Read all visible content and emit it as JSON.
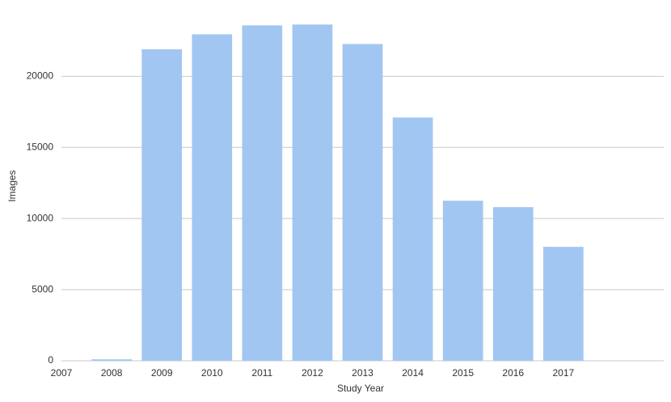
{
  "chart_data": {
    "type": "bar",
    "x_label": "Study Year",
    "y_label": "Images",
    "x": [
      2008,
      2009,
      2010,
      2011,
      2012,
      2013,
      2014,
      2015,
      2016,
      2017
    ],
    "values": [
      100,
      21900,
      22950,
      23580,
      23640,
      22270,
      17100,
      11250,
      10800,
      8010
    ],
    "color": "#a1c6f1",
    "xlim": [
      2007,
      2019
    ],
    "xticks": [
      2007,
      2008,
      2009,
      2010,
      2011,
      2012,
      2013,
      2014,
      2015,
      2016,
      2017
    ],
    "ylim": [
      0,
      24000
    ],
    "yticks": [
      0,
      5000,
      10000,
      15000,
      20000
    ],
    "grid": true
  }
}
